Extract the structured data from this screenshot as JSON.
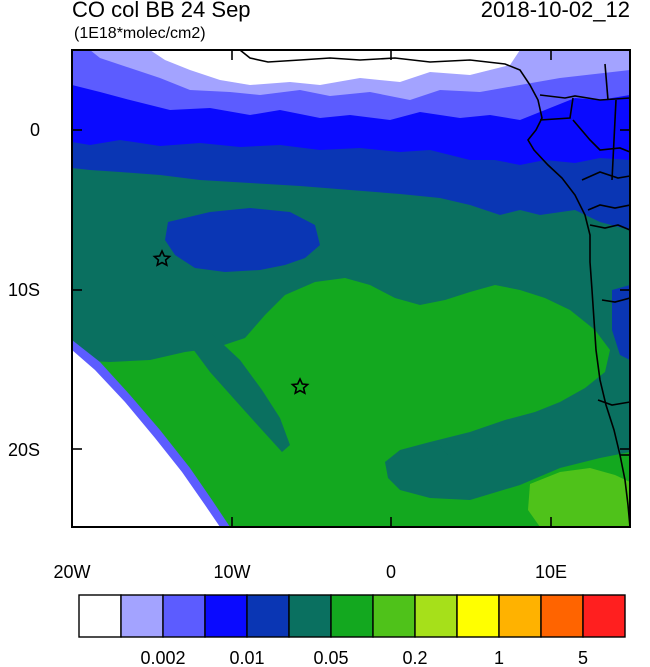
{
  "header": {
    "title": "CO col BB 24 Sep",
    "datetime": "2018-10-02_12",
    "units": "(1E18*molec/cm2)"
  },
  "map": {
    "lon_range": [
      -20,
      15
    ],
    "lat_range": [
      -25,
      5
    ],
    "lon_ticks": [
      {
        "lon": -20,
        "label": "20W"
      },
      {
        "lon": -10,
        "label": "10W"
      },
      {
        "lon": 0,
        "label": "0"
      },
      {
        "lon": 10,
        "label": "10E"
      }
    ],
    "lat_ticks": [
      {
        "lat": 0,
        "label": "0"
      },
      {
        "lat": -10,
        "label": "10S"
      },
      {
        "lat": -20,
        "label": "20S"
      }
    ],
    "markers": [
      {
        "lon": -14.4,
        "lat": -8.0,
        "symbol": "star"
      },
      {
        "lon": -5.7,
        "lat": -16.0,
        "symbol": "star"
      }
    ]
  },
  "colorbar": {
    "colors": [
      "#ffffff",
      "#a3a3ff",
      "#5c5cff",
      "#0a0aff",
      "#0a36b4",
      "#0a7060",
      "#13a81f",
      "#4fc21a",
      "#a6e01a",
      "#ffff00",
      "#ffb200",
      "#ff6400",
      "#ff1f1f"
    ],
    "labels": [
      {
        "after_box": 2,
        "text": "0.002"
      },
      {
        "after_box": 4,
        "text": "0.01"
      },
      {
        "after_box": 6,
        "text": "0.05"
      },
      {
        "after_box": 8,
        "text": "0.2"
      },
      {
        "after_box": 10,
        "text": "1"
      },
      {
        "after_box": 12,
        "text": "5"
      }
    ]
  }
}
